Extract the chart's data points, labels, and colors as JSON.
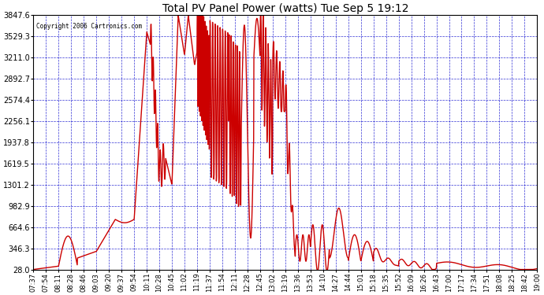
{
  "title": "Total PV Panel Power (watts) Tue Sep 5 19:12",
  "copyright": "Copyright 2006 Cartronics.com",
  "line_color": "#cc0000",
  "background_color": "#ffffff",
  "plot_background": "#ffffff",
  "grid_color": "#0000cc",
  "tick_label_color": "#000000",
  "ylim": [
    28.0,
    3847.6
  ],
  "yticks": [
    28.0,
    346.3,
    664.6,
    982.9,
    1301.2,
    1619.5,
    1937.8,
    2256.1,
    2574.4,
    2892.7,
    3211.0,
    3529.3,
    3847.6
  ],
  "xtick_labels": [
    "07:37",
    "07:54",
    "08:11",
    "08:28",
    "08:46",
    "09:03",
    "09:20",
    "09:37",
    "09:54",
    "10:11",
    "10:28",
    "10:45",
    "11:02",
    "11:19",
    "11:37",
    "11:54",
    "12:11",
    "12:28",
    "12:45",
    "13:02",
    "13:19",
    "13:36",
    "13:53",
    "14:10",
    "14:27",
    "14:44",
    "15:01",
    "15:18",
    "15:35",
    "15:52",
    "16:09",
    "16:26",
    "16:43",
    "17:00",
    "17:17",
    "17:34",
    "17:51",
    "18:08",
    "18:25",
    "18:42",
    "19:00"
  ],
  "line_width": 1.0
}
